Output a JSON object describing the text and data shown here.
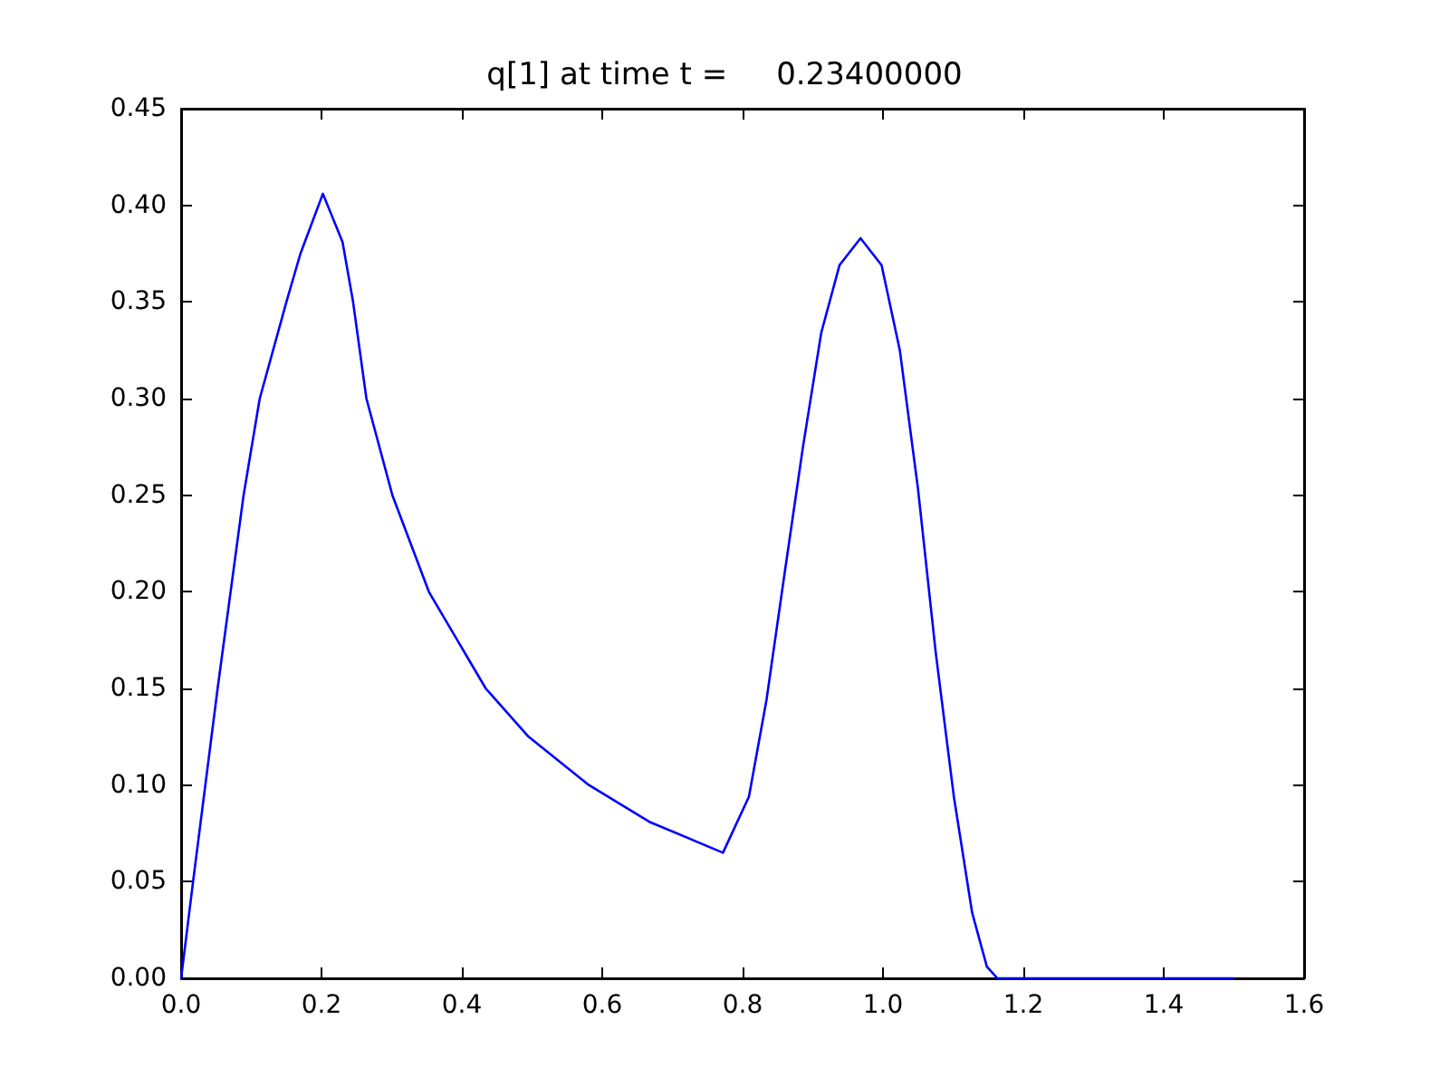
{
  "chart_data": {
    "type": "line",
    "title": "q[1] at time t =     0.23400000",
    "series": [
      {
        "color": "#0000ff",
        "x": [
          0,
          0.017,
          0.052,
          0.089,
          0.112,
          0.15,
          0.17,
          0.202,
          0.23,
          0.245,
          0.264,
          0.301,
          0.353,
          0.434,
          0.495,
          0.581,
          0.667,
          0.772,
          0.809,
          0.834,
          0.86,
          0.886,
          0.912,
          0.938,
          0.968,
          0.998,
          1.024,
          1.05,
          1.075,
          1.101,
          1.127,
          1.148,
          1.163,
          1.5
        ],
        "values": [
          0,
          0.05,
          0.15,
          0.25,
          0.3,
          0.35,
          0.375,
          0.406,
          0.381,
          0.35,
          0.3,
          0.25,
          0.2,
          0.15,
          0.125,
          0.1,
          0.081,
          0.065,
          0.094,
          0.144,
          0.21,
          0.275,
          0.334,
          0.369,
          0.383,
          0.369,
          0.325,
          0.253,
          0.169,
          0.094,
          0.034,
          0.006,
          0,
          0
        ]
      }
    ],
    "xlim": [
      0,
      1.6
    ],
    "xticks": [
      {
        "value": 0,
        "label": "0.0"
      },
      {
        "value": 0.2,
        "label": "0.2"
      },
      {
        "value": 0.4,
        "label": "0.4"
      },
      {
        "value": 0.6,
        "label": "0.6"
      },
      {
        "value": 0.8,
        "label": "0.8"
      },
      {
        "value": 1,
        "label": "1.0"
      },
      {
        "value": 1.2,
        "label": "1.2"
      },
      {
        "value": 1.4,
        "label": "1.4"
      },
      {
        "value": 1.6,
        "label": "1.6"
      }
    ],
    "ylim": [
      0,
      0.45
    ],
    "yticks": [
      {
        "value": 0,
        "label": "0.00"
      },
      {
        "value": 0.05,
        "label": "0.05"
      },
      {
        "value": 0.1,
        "label": "0.10"
      },
      {
        "value": 0.15,
        "label": "0.15"
      },
      {
        "value": 0.2,
        "label": "0.20"
      },
      {
        "value": 0.25,
        "label": "0.25"
      },
      {
        "value": 0.3,
        "label": "0.30"
      },
      {
        "value": 0.35,
        "label": "0.35"
      },
      {
        "value": 0.4,
        "label": "0.40"
      },
      {
        "value": 0.45,
        "label": "0.45"
      }
    ],
    "grid": false,
    "marker": "none",
    "line_style": "solid"
  }
}
